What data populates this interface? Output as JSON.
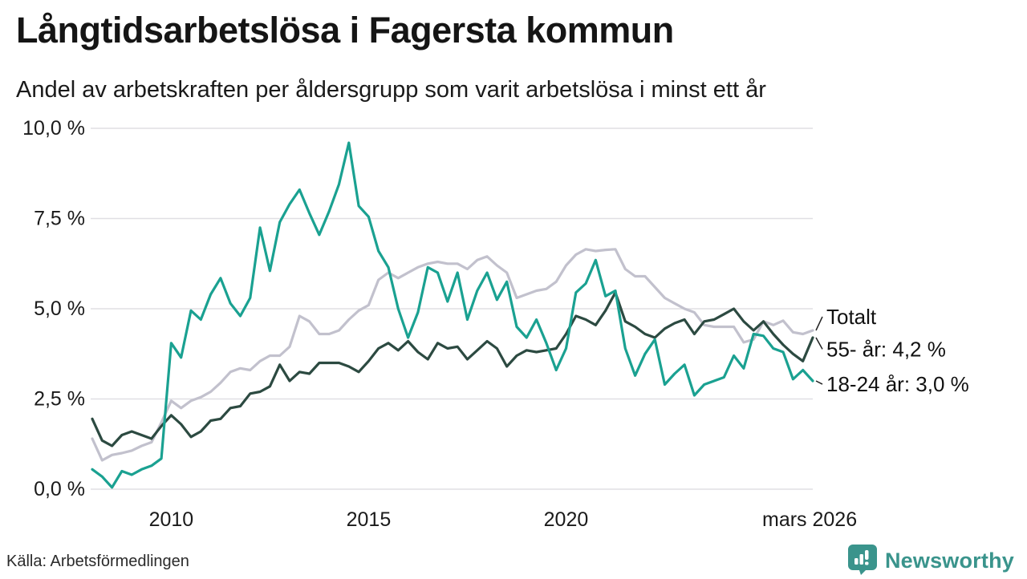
{
  "header": {
    "title": "Långtidsarbetslösa i Fagersta kommun",
    "subtitle": "Andel av arbetskraften per åldersgrupp som varit arbetslösa i minst ett år"
  },
  "footer": {
    "source": "Källa: Arbetsförmedlingen",
    "brand": "Newsworthy",
    "brand_color": "#3a948c",
    "brand_icon": "newsworthy-chart-bubble-icon"
  },
  "chart_data": {
    "type": "line",
    "title": "Långtidsarbetslösa i Fagersta kommun",
    "subtitle": "Andel av arbetskraften per åldersgrupp som varit arbetslösa i minst ett år",
    "unit": "%",
    "grid": "horizontal",
    "legend_position": "right-annotations",
    "ylim": [
      0,
      10
    ],
    "yticks": {
      "values": [
        0,
        2.5,
        5,
        7.5,
        10
      ],
      "labels": [
        "0,0 %",
        "2,5 %",
        "5,0 %",
        "7,5 %",
        "10,0 %"
      ]
    },
    "xticks": {
      "values": [
        2010,
        2015,
        2020,
        2026.17
      ],
      "labels": [
        "2010",
        "2015",
        "2020",
        "mars 2026"
      ]
    },
    "x_range": [
      2008,
      2026.25
    ],
    "x": [
      2008.0,
      2008.25,
      2008.5,
      2008.75,
      2009.0,
      2009.25,
      2009.5,
      2009.75,
      2010.0,
      2010.25,
      2010.5,
      2010.75,
      2011.0,
      2011.25,
      2011.5,
      2011.75,
      2012.0,
      2012.25,
      2012.5,
      2012.75,
      2013.0,
      2013.25,
      2013.5,
      2013.75,
      2014.0,
      2014.25,
      2014.5,
      2014.75,
      2015.0,
      2015.25,
      2015.5,
      2015.75,
      2016.0,
      2016.25,
      2016.5,
      2016.75,
      2017.0,
      2017.25,
      2017.5,
      2017.75,
      2018.0,
      2018.25,
      2018.5,
      2018.75,
      2019.0,
      2019.25,
      2019.5,
      2019.75,
      2020.0,
      2020.25,
      2020.5,
      2020.75,
      2021.0,
      2021.25,
      2021.5,
      2021.75,
      2022.0,
      2022.25,
      2022.5,
      2022.75,
      2023.0,
      2023.25,
      2023.5,
      2023.75,
      2024.0,
      2024.25,
      2024.5,
      2024.75,
      2025.0,
      2025.25,
      2025.5,
      2025.75,
      2026.0,
      2026.25
    ],
    "series": [
      {
        "name": "Totalt",
        "color": "#c2c1cd",
        "values": [
          1.4,
          0.8,
          0.95,
          1.0,
          1.07,
          1.2,
          1.3,
          1.85,
          2.45,
          2.25,
          2.45,
          2.55,
          2.7,
          2.95,
          3.25,
          3.35,
          3.3,
          3.55,
          3.7,
          3.7,
          3.95,
          4.8,
          4.65,
          4.3,
          4.3,
          4.4,
          4.7,
          4.95,
          5.1,
          5.8,
          6.0,
          5.85,
          6.0,
          6.15,
          6.25,
          6.3,
          6.25,
          6.25,
          6.1,
          6.35,
          6.45,
          6.2,
          6.0,
          5.3,
          5.4,
          5.5,
          5.55,
          5.75,
          6.2,
          6.5,
          6.65,
          6.6,
          6.63,
          6.65,
          6.1,
          5.9,
          5.9,
          5.6,
          5.3,
          5.15,
          5.0,
          4.9,
          4.55,
          4.5,
          4.5,
          4.5,
          4.07,
          4.15,
          4.65,
          4.55,
          4.67,
          4.35,
          4.3,
          4.4
        ]
      },
      {
        "name": "55- år",
        "color": "#2c4a41",
        "values": [
          1.95,
          1.35,
          1.2,
          1.5,
          1.6,
          1.5,
          1.4,
          1.75,
          2.05,
          1.8,
          1.45,
          1.6,
          1.9,
          1.95,
          2.25,
          2.3,
          2.65,
          2.7,
          2.85,
          3.45,
          3.0,
          3.25,
          3.2,
          3.5,
          3.5,
          3.5,
          3.4,
          3.25,
          3.55,
          3.9,
          4.05,
          3.85,
          4.1,
          3.8,
          3.6,
          4.05,
          3.9,
          3.95,
          3.6,
          3.85,
          4.1,
          3.9,
          3.4,
          3.7,
          3.85,
          3.8,
          3.85,
          3.9,
          4.3,
          4.8,
          4.7,
          4.55,
          4.95,
          5.45,
          4.65,
          4.5,
          4.3,
          4.2,
          4.45,
          4.6,
          4.7,
          4.3,
          4.65,
          4.7,
          4.85,
          5.0,
          4.65,
          4.4,
          4.65,
          4.3,
          4.0,
          3.75,
          3.55,
          4.2
        ]
      },
      {
        "name": "18-24 år",
        "color": "#1aa191",
        "values": [
          0.55,
          0.35,
          0.05,
          0.5,
          0.4,
          0.55,
          0.65,
          0.85,
          4.05,
          3.65,
          4.95,
          4.7,
          5.4,
          5.85,
          5.15,
          4.8,
          5.3,
          7.25,
          6.05,
          7.4,
          7.9,
          8.3,
          7.65,
          7.05,
          7.7,
          8.45,
          9.6,
          7.85,
          7.55,
          6.6,
          6.15,
          5.0,
          4.2,
          4.9,
          6.15,
          6.0,
          5.2,
          6.0,
          4.7,
          5.5,
          6.0,
          5.25,
          5.75,
          4.5,
          4.2,
          4.7,
          4.05,
          3.3,
          3.9,
          5.45,
          5.7,
          6.35,
          5.35,
          5.5,
          3.9,
          3.15,
          3.75,
          4.15,
          2.9,
          3.2,
          3.45,
          2.6,
          2.9,
          3.0,
          3.1,
          3.7,
          3.35,
          4.3,
          4.25,
          3.9,
          3.8,
          3.05,
          3.3,
          3.0
        ]
      }
    ],
    "annotations": [
      {
        "label": "Totalt",
        "value": 4.4,
        "label_value": 4.78
      },
      {
        "label": "55- år: 4,2 %",
        "value": 4.2,
        "label_value": 3.88
      },
      {
        "label": "18-24 år: 3,0 %",
        "value": 3.0,
        "label_value": 2.91
      }
    ],
    "colors": {
      "grid": "#e0dfe4",
      "axis_text": "#1a1a1a",
      "annotation_text": "#111111",
      "leader_line": "#222222"
    }
  }
}
